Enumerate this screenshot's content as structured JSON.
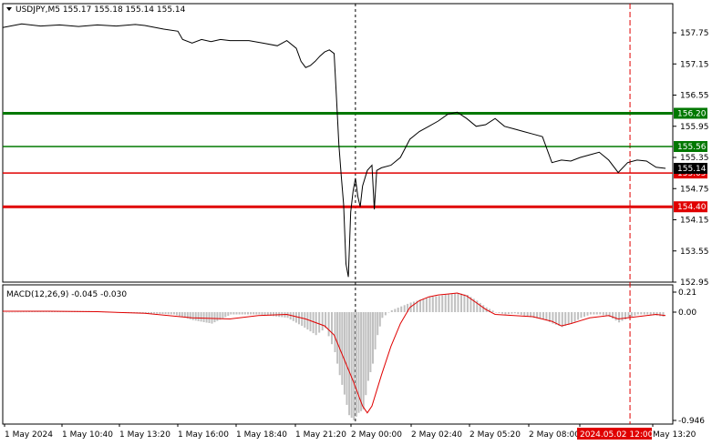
{
  "chart_data": [
    {
      "type": "line",
      "symbol": "USDJPY,M5",
      "ohlc": [
        "155.17",
        "155.18",
        "155.14",
        "155.14"
      ],
      "ohlc_values": [
        155.17,
        155.18,
        155.14,
        155.14
      ],
      "ylim": [
        152.95,
        158.0
      ],
      "y_ticks": [
        157.75,
        157.15,
        156.55,
        155.95,
        155.35,
        154.75,
        154.15,
        153.55,
        152.95
      ],
      "y_tick_labels": [
        "157.75",
        "157.15",
        "156.55",
        "155.95",
        "155.35",
        "154.75",
        "154.15",
        "153.55",
        "152.95"
      ],
      "x_labels": [
        "1 May 2024",
        "1 May 10:40",
        "1 May 13:20",
        "1 May 16:00",
        "1 May 18:40",
        "1 May 21:20",
        "2 May 00:00",
        "2 May 02:40",
        "2 May 05:20",
        "2 May 08:00",
        "2024.05.02 12:00",
        "May 13:20"
      ],
      "x_range": [
        0,
        140
      ],
      "price_points": [
        [
          0,
          157.85
        ],
        [
          4,
          157.92
        ],
        [
          8,
          157.88
        ],
        [
          12,
          157.9
        ],
        [
          16,
          157.87
        ],
        [
          20,
          157.9
        ],
        [
          24,
          157.88
        ],
        [
          28,
          157.91
        ],
        [
          30,
          157.89
        ],
        [
          34,
          157.82
        ],
        [
          37,
          157.78
        ],
        [
          38,
          157.62
        ],
        [
          40,
          157.55
        ],
        [
          42,
          157.62
        ],
        [
          44,
          157.58
        ],
        [
          46,
          157.62
        ],
        [
          48,
          157.6
        ],
        [
          52,
          157.6
        ],
        [
          55,
          157.55
        ],
        [
          58,
          157.5
        ],
        [
          60,
          157.6
        ],
        [
          62,
          157.45
        ],
        [
          63,
          157.2
        ],
        [
          64,
          157.08
        ],
        [
          65,
          157.12
        ],
        [
          66,
          157.2
        ],
        [
          67,
          157.3
        ],
        [
          68,
          157.38
        ],
        [
          69,
          157.42
        ],
        [
          70,
          157.35
        ],
        [
          70.5,
          156.5
        ],
        [
          71,
          155.6
        ],
        [
          71.5,
          155.0
        ],
        [
          72,
          154.45
        ],
        [
          72.5,
          153.3
        ],
        [
          73,
          153.05
        ],
        [
          73.5,
          154.3
        ],
        [
          74,
          154.7
        ],
        [
          74.5,
          154.95
        ],
        [
          75,
          154.6
        ],
        [
          75.5,
          154.4
        ],
        [
          76,
          154.8
        ],
        [
          77,
          155.1
        ],
        [
          78,
          155.2
        ],
        [
          78.5,
          154.35
        ],
        [
          79,
          155.1
        ],
        [
          80,
          155.15
        ],
        [
          82,
          155.2
        ],
        [
          84,
          155.35
        ],
        [
          86,
          155.7
        ],
        [
          88,
          155.85
        ],
        [
          90,
          155.95
        ],
        [
          92,
          156.05
        ],
        [
          94,
          156.18
        ],
        [
          96,
          156.22
        ],
        [
          98,
          156.1
        ],
        [
          100,
          155.95
        ],
        [
          102,
          155.98
        ],
        [
          104,
          156.1
        ],
        [
          106,
          155.95
        ],
        [
          108,
          155.9
        ],
        [
          110,
          155.85
        ],
        [
          112,
          155.8
        ],
        [
          114,
          155.75
        ],
        [
          115,
          155.5
        ],
        [
          116,
          155.25
        ],
        [
          118,
          155.3
        ],
        [
          120,
          155.28
        ],
        [
          122,
          155.35
        ],
        [
          124,
          155.4
        ],
        [
          126,
          155.45
        ],
        [
          128,
          155.3
        ],
        [
          130,
          155.06
        ],
        [
          132,
          155.25
        ],
        [
          134,
          155.3
        ],
        [
          136,
          155.28
        ],
        [
          138,
          155.16
        ],
        [
          140,
          155.14
        ]
      ]
    },
    {
      "type": "area",
      "indicator": "MACD(12,26,9)",
      "values_text": [
        "-0.045",
        "-0.030"
      ],
      "ylim": [
        -0.946,
        0.21
      ],
      "y_tick_labels": [
        "0.21",
        "0.00",
        "-0.946"
      ],
      "histogram": [
        [
          0,
          0.0
        ],
        [
          6,
          0.005
        ],
        [
          12,
          0.01
        ],
        [
          18,
          0.012
        ],
        [
          24,
          -0.005
        ],
        [
          30,
          -0.01
        ],
        [
          36,
          -0.02
        ],
        [
          40,
          -0.07
        ],
        [
          44,
          -0.1
        ],
        [
          48,
          -0.02
        ],
        [
          54,
          -0.02
        ],
        [
          60,
          -0.05
        ],
        [
          63,
          -0.12
        ],
        [
          66,
          -0.2
        ],
        [
          68,
          -0.14
        ],
        [
          70,
          -0.35
        ],
        [
          71,
          -0.55
        ],
        [
          72,
          -0.72
        ],
        [
          73,
          -0.9
        ],
        [
          74,
          -0.946
        ],
        [
          75,
          -0.88
        ],
        [
          76,
          -0.85
        ],
        [
          77,
          -0.6
        ],
        [
          78,
          -0.45
        ],
        [
          79,
          -0.2
        ],
        [
          80,
          -0.05
        ],
        [
          82,
          0.02
        ],
        [
          84,
          0.06
        ],
        [
          86,
          0.1
        ],
        [
          88,
          0.13
        ],
        [
          90,
          0.16
        ],
        [
          92,
          0.17
        ],
        [
          94,
          0.19
        ],
        [
          96,
          0.2
        ],
        [
          98,
          0.18
        ],
        [
          100,
          0.12
        ],
        [
          102,
          0.05
        ],
        [
          104,
          0.0
        ],
        [
          106,
          -0.02
        ],
        [
          108,
          -0.01
        ],
        [
          110,
          -0.03
        ],
        [
          112,
          -0.05
        ],
        [
          114,
          -0.06
        ],
        [
          116,
          -0.1
        ],
        [
          118,
          -0.13
        ],
        [
          120,
          -0.1
        ],
        [
          122,
          -0.05
        ],
        [
          124,
          -0.02
        ],
        [
          126,
          -0.02
        ],
        [
          128,
          -0.04
        ],
        [
          130,
          -0.09
        ],
        [
          132,
          -0.05
        ],
        [
          134,
          -0.02
        ],
        [
          136,
          -0.02
        ],
        [
          138,
          -0.03
        ],
        [
          140,
          -0.045
        ]
      ],
      "signal": [
        [
          0,
          0.01
        ],
        [
          10,
          0.01
        ],
        [
          20,
          0.005
        ],
        [
          30,
          -0.01
        ],
        [
          40,
          -0.05
        ],
        [
          48,
          -0.06
        ],
        [
          54,
          -0.03
        ],
        [
          60,
          -0.02
        ],
        [
          64,
          -0.06
        ],
        [
          68,
          -0.12
        ],
        [
          70,
          -0.2
        ],
        [
          72,
          -0.4
        ],
        [
          74,
          -0.6
        ],
        [
          76,
          -0.82
        ],
        [
          77,
          -0.88
        ],
        [
          78,
          -0.82
        ],
        [
          80,
          -0.55
        ],
        [
          82,
          -0.3
        ],
        [
          84,
          -0.1
        ],
        [
          86,
          0.05
        ],
        [
          88,
          0.12
        ],
        [
          90,
          0.16
        ],
        [
          92,
          0.18
        ],
        [
          94,
          0.19
        ],
        [
          96,
          0.2
        ],
        [
          98,
          0.17
        ],
        [
          100,
          0.1
        ],
        [
          102,
          0.03
        ],
        [
          104,
          -0.02
        ],
        [
          108,
          -0.03
        ],
        [
          112,
          -0.04
        ],
        [
          116,
          -0.08
        ],
        [
          118,
          -0.12
        ],
        [
          120,
          -0.1
        ],
        [
          124,
          -0.05
        ],
        [
          128,
          -0.03
        ],
        [
          130,
          -0.06
        ],
        [
          134,
          -0.04
        ],
        [
          138,
          -0.02
        ],
        [
          140,
          -0.03
        ]
      ]
    }
  ],
  "levels": [
    {
      "label": "156.20",
      "value": 156.2,
      "color": "#007800"
    },
    {
      "label": "155.56",
      "value": 155.56,
      "color": "#007800"
    },
    {
      "label": "155.05",
      "value": 155.05,
      "color": "#e00000"
    },
    {
      "label": "154.40",
      "value": 154.4,
      "color": "#e00000"
    }
  ],
  "current_price": {
    "label": "155.14",
    "value": 155.14
  },
  "crosshair_time_label": "2024.05.02 12:00",
  "colors": {
    "price": "#000000",
    "grid": "#000000",
    "hist": "#c0c0c0",
    "signal": "#e00000",
    "vline_red": "#e00000",
    "vline_black": "#000000"
  },
  "markers": {
    "dropdown_icon": "triangle-down"
  }
}
